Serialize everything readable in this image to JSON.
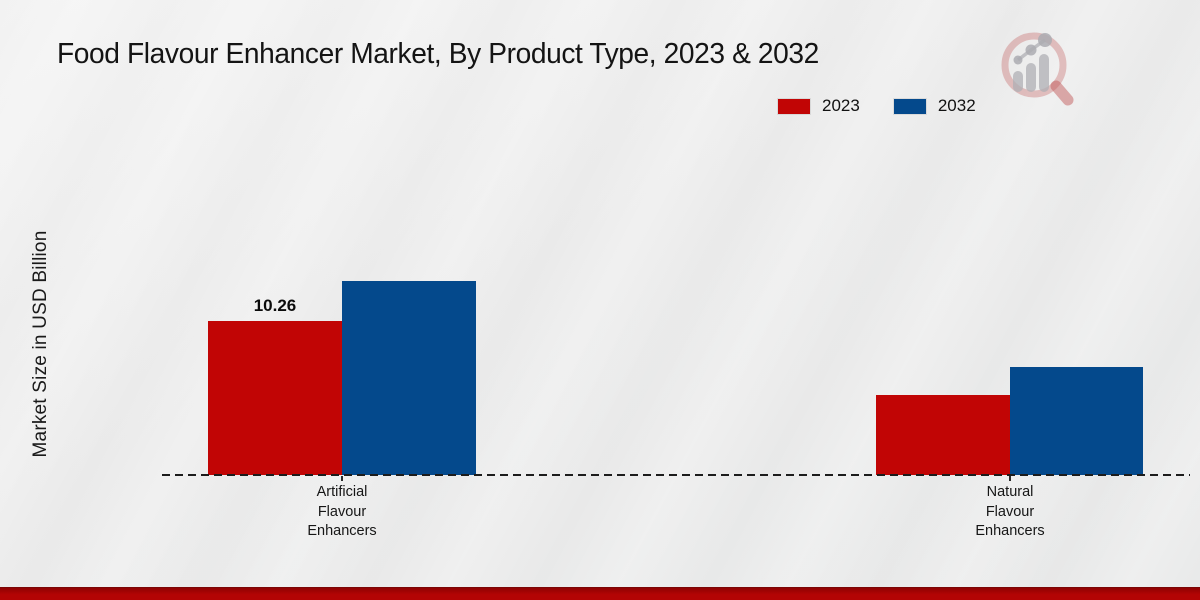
{
  "chart_data": {
    "type": "bar",
    "title": "Food Flavour Enhancer Market, By Product Type, 2023 & 2032",
    "ylabel": "Market Size in USD Billion",
    "xlabel": "",
    "categories": [
      "Artificial Flavour Enhancers",
      "Natural Flavour Enhancers"
    ],
    "series": [
      {
        "name": "2023",
        "color": "#c10505",
        "values": [
          10.26,
          5.3
        ]
      },
      {
        "name": "2032",
        "color": "#04498c",
        "values": [
          12.9,
          7.2
        ]
      }
    ],
    "visible_value_labels": [
      {
        "series": "2023",
        "category": "Artificial Flavour Enhancers",
        "text": "10.26"
      }
    ],
    "ylim": [
      0,
      14
    ],
    "grid": false,
    "legend_position": "top-right",
    "baseline_style": "dashed",
    "bar_orientation": "vertical"
  },
  "watermark": {
    "icon": "market-research-magnifier-logo"
  },
  "footer": {
    "accent_color": "#b30404"
  },
  "background_color": "#eaeaea"
}
